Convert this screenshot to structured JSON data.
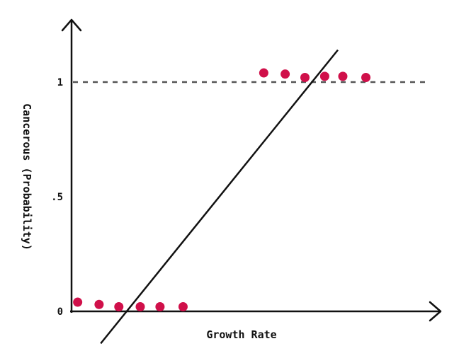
{
  "chart_data": {
    "type": "scatter",
    "xlabel": "Growth Rate",
    "ylabel": "Cancerous (Probability)",
    "xlim": [
      0,
      10
    ],
    "ylim": [
      0,
      1.2
    ],
    "yticks": [
      {
        "value": 0,
        "label": "0"
      },
      {
        "value": 0.5,
        "label": ".5"
      },
      {
        "value": 1,
        "label": "1"
      }
    ],
    "reference_line": {
      "y": 1,
      "style": "dashed"
    },
    "series": [
      {
        "color": "#d0104a",
        "points": [
          {
            "x": 0.1,
            "y": 0.04
          },
          {
            "x": 0.75,
            "y": 0.03
          },
          {
            "x": 1.35,
            "y": 0.02
          },
          {
            "x": 2.0,
            "y": 0.02
          },
          {
            "x": 2.6,
            "y": 0.02
          },
          {
            "x": 3.3,
            "y": 0.02
          },
          {
            "x": 5.75,
            "y": 1.04
          },
          {
            "x": 6.4,
            "y": 1.035
          },
          {
            "x": 7.0,
            "y": 1.02
          },
          {
            "x": 7.6,
            "y": 1.025
          },
          {
            "x": 8.15,
            "y": 1.025
          },
          {
            "x": 8.85,
            "y": 1.02
          }
        ]
      }
    ],
    "fit_line": {
      "x1": 0.8,
      "y1": -0.14,
      "x2": 8.0,
      "y2": 1.14,
      "color": "#111111"
    }
  }
}
